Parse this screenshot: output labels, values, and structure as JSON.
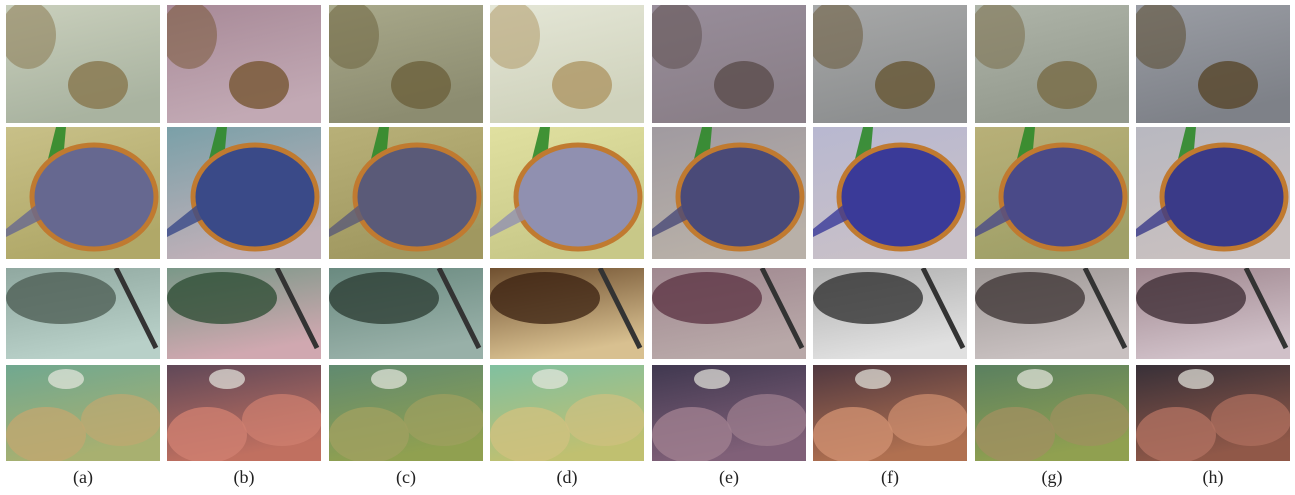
{
  "figure": {
    "labels": [
      "(a)",
      "(b)",
      "(c)",
      "(d)",
      "(e)",
      "(f)",
      "(g)",
      "(h)"
    ]
  }
}
